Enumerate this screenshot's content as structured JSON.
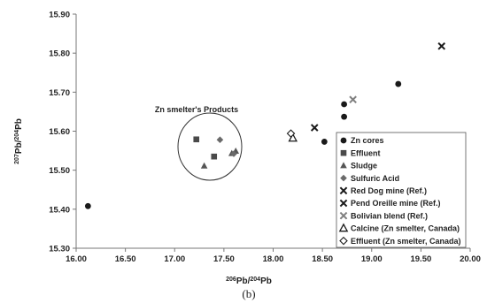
{
  "chart_data": {
    "type": "scatter",
    "title": "",
    "xlabel": {
      "pre": "206",
      "mid": "Pb/",
      "sup": "204",
      "post": "Pb"
    },
    "ylabel": {
      "pre": "207",
      "mid": "Pb/",
      "sup": "204",
      "post": "Pb"
    },
    "xlim": [
      16.0,
      20.0
    ],
    "ylim": [
      15.3,
      15.9
    ],
    "xticks": [
      "16.00",
      "16.50",
      "17.00",
      "17.50",
      "18.00",
      "18.50",
      "19.00",
      "19.50",
      "20.00"
    ],
    "yticks": [
      "15.30",
      "15.40",
      "15.50",
      "15.60",
      "15.70",
      "15.80",
      "15.90"
    ],
    "grid": false,
    "legend_position": "bottom-right",
    "annotation": "Zn smelter's Products",
    "caption": "(b)",
    "series": [
      {
        "name": "Zn cores",
        "marker": "circle",
        "color": "#1a1a1a",
        "points": [
          [
            16.12,
            15.408
          ],
          [
            18.52,
            15.573
          ],
          [
            18.72,
            15.637
          ],
          [
            18.72,
            15.669
          ],
          [
            19.27,
            15.721
          ]
        ]
      },
      {
        "name": "Effluent",
        "marker": "square",
        "color": "#4a4a4a",
        "points": [
          [
            17.22,
            15.579
          ],
          [
            17.4,
            15.535
          ]
        ]
      },
      {
        "name": "Sludge",
        "marker": "triangle",
        "color": "#555555",
        "points": [
          [
            17.3,
            15.511
          ],
          [
            17.58,
            15.543
          ],
          [
            17.62,
            15.549
          ]
        ]
      },
      {
        "name": "Sulfuric Acid",
        "marker": "diamond",
        "color": "#6a6a6a",
        "points": [
          [
            17.46,
            15.578
          ],
          [
            17.6,
            15.542
          ]
        ]
      },
      {
        "name": "Red Dog mine (Ref.)",
        "marker": "x",
        "color": "#1a1a1a",
        "points": [
          [
            18.42,
            15.609
          ]
        ]
      },
      {
        "name": "Pend Oreille mine (Ref.)",
        "marker": "x",
        "color": "#1a1a1a",
        "points": [
          [
            19.71,
            15.818
          ]
        ]
      },
      {
        "name": "Bolivian blend (Ref.)",
        "marker": "x",
        "color": "#808080",
        "points": [
          [
            18.81,
            15.681
          ]
        ]
      },
      {
        "name": "Calcine (Zn smelter, Canada)",
        "marker": "triangle-open",
        "color": "#1a1a1a",
        "points": [
          [
            18.2,
            15.582
          ]
        ]
      },
      {
        "name": "Effluent (Zn smelter, Canada)",
        "marker": "diamond-open",
        "color": "#1a1a1a",
        "points": [
          [
            18.18,
            15.594
          ]
        ]
      }
    ]
  }
}
